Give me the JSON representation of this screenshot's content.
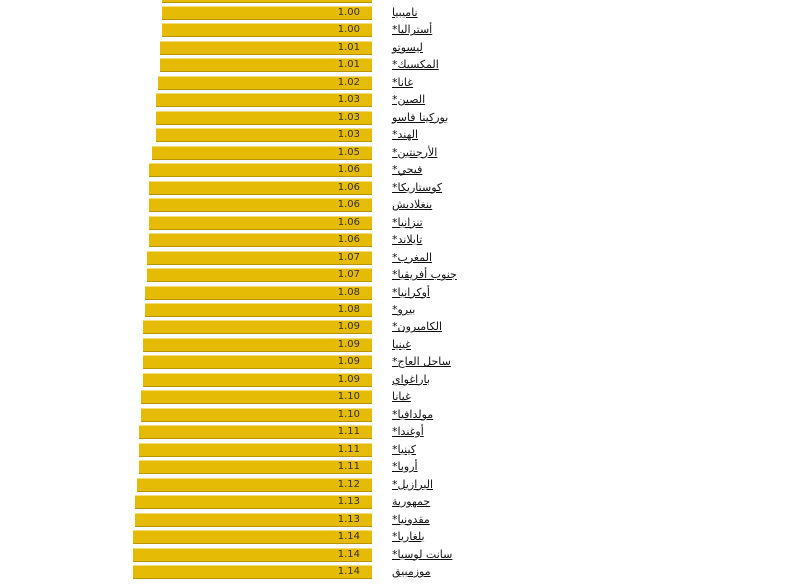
{
  "chart_data": {
    "type": "bar",
    "orientation": "horizontal",
    "categories": [
      "",
      "نامیبیا",
      "أستراليا*",
      "ليسوتو",
      "المكسيك*",
      "غانا*",
      "الصين*",
      "بوركينا فاسو",
      "الهند*",
      "الأرجنتين*",
      "فيجي*",
      "كوستاريكا*",
      "بنغلاديش",
      "تنزانيا*",
      "تايلاند*",
      "المغرب*",
      "جنوب أفريقيا*",
      "أوكرانيا*",
      "بيرو*",
      "الكاميرون*",
      "غينيا",
      "ساحل العاج*",
      "باراغواي",
      "غيانا",
      "مولدافيا*",
      "أوغندا*",
      "كينيا*",
      "أروبا*",
      "البرازيل*",
      "جمهورية",
      "مقدونيا*",
      "بلغاريا*",
      "سانت لوسيا*",
      "موزمبيق"
    ],
    "values": [
      1.0,
      1.0,
      1.0,
      1.01,
      1.01,
      1.02,
      1.03,
      1.03,
      1.03,
      1.05,
      1.06,
      1.06,
      1.06,
      1.06,
      1.06,
      1.07,
      1.07,
      1.08,
      1.08,
      1.09,
      1.09,
      1.09,
      1.09,
      1.1,
      1.1,
      1.11,
      1.11,
      1.11,
      1.12,
      1.13,
      1.13,
      1.14,
      1.14,
      1.14
    ],
    "value_labels": [
      "",
      "1.00",
      "1.00",
      "1.01",
      "1.01",
      "1.02",
      "1.03",
      "1.03",
      "1.03",
      "1.05",
      "1.06",
      "1.06",
      "1.06",
      "1.06",
      "1.06",
      "1.07",
      "1.07",
      "1.08",
      "1.08",
      "1.09",
      "1.09",
      "1.09",
      "1.09",
      "1.10",
      "1.10",
      "1.11",
      "1.11",
      "1.11",
      "1.12",
      "1.13",
      "1.13",
      "1.14",
      "1.14",
      "1.14"
    ],
    "title": "",
    "xlabel": "",
    "ylabel": "",
    "bar_color": "#e5bb05",
    "grid": false
  }
}
